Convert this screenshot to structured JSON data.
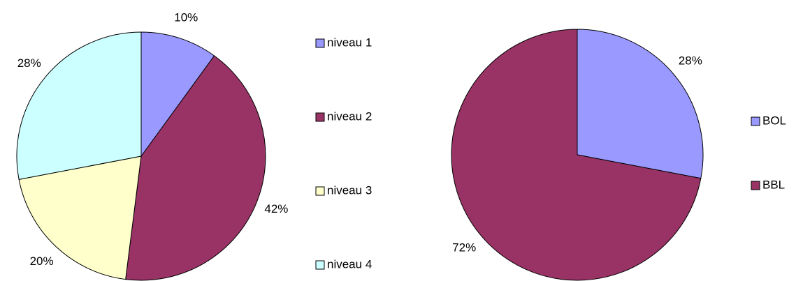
{
  "chart_data": [
    {
      "type": "pie",
      "categories": [
        "niveau 1",
        "niveau 2",
        "niveau 3",
        "niveau 4"
      ],
      "values": [
        10,
        42,
        20,
        28
      ],
      "value_labels": [
        "10%",
        "42%",
        "20%",
        "28%"
      ],
      "colors": [
        "#9999ff",
        "#993366",
        "#ffffcc",
        "#ccffff"
      ]
    },
    {
      "type": "pie",
      "categories": [
        "BOL",
        "BBL"
      ],
      "values": [
        28,
        72
      ],
      "value_labels": [
        "28%",
        "72%"
      ],
      "colors": [
        "#9999ff",
        "#993366"
      ]
    }
  ]
}
